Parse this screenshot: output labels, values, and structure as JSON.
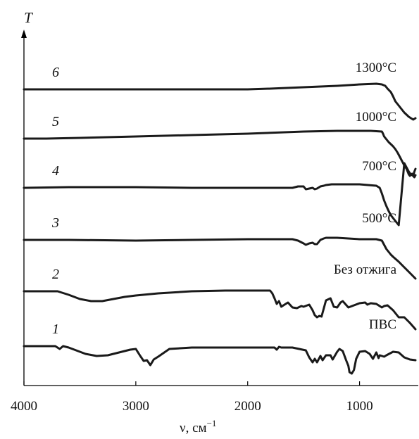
{
  "chart_data": {
    "type": "line",
    "title": "",
    "xlabel": "ν, см",
    "xlabel_superscript": "−1",
    "ylabel": "T",
    "xlim": [
      4000,
      500
    ],
    "x_reversed": true,
    "xticks": [
      4000,
      3000,
      2000,
      1000
    ],
    "y_ticks_shown": false,
    "grid": false,
    "legend": "none",
    "series": [
      {
        "number": "1",
        "label": "ПВС",
        "x": [
          4000,
          3800,
          3720,
          3680,
          3650,
          3600,
          3550,
          3450,
          3350,
          3250,
          3150,
          3050,
          3000,
          2960,
          2930,
          2900,
          2870,
          2840,
          2800,
          2700,
          2500,
          2200,
          1900,
          1760,
          1740,
          1720,
          1700,
          1600,
          1480,
          1450,
          1420,
          1400,
          1380,
          1350,
          1330,
          1300,
          1260,
          1240,
          1200,
          1180,
          1150,
          1120,
          1100,
          1090,
          1070,
          1050,
          1030,
          1000,
          950,
          910,
          880,
          850,
          830,
          820,
          780,
          760,
          700,
          650,
          600,
          550,
          500
        ],
        "y": [
          492,
          492,
          492,
          496,
          492,
          494,
          497,
          503,
          506,
          505,
          501,
          497,
          496,
          506,
          513,
          512,
          519,
          511,
          507,
          496,
          494,
          494,
          494,
          494,
          497,
          493,
          494,
          494,
          498,
          508,
          515,
          510,
          515,
          506,
          512,
          505,
          505,
          511,
          500,
          496,
          499,
          512,
          520,
          529,
          531,
          526,
          510,
          500,
          499,
          503,
          510,
          501,
          509,
          505,
          507,
          505,
          500,
          501,
          508,
          511,
          512
        ]
      },
      {
        "number": "2",
        "label": "Без отжига",
        "x": [
          4000,
          3700,
          3600,
          3500,
          3400,
          3300,
          3200,
          3100,
          3000,
          2800,
          2500,
          2200,
          1900,
          1800,
          1780,
          1760,
          1740,
          1720,
          1700,
          1680,
          1640,
          1600,
          1560,
          1520,
          1500,
          1450,
          1420,
          1400,
          1380,
          1360,
          1340,
          1300,
          1260,
          1230,
          1200,
          1170,
          1150,
          1100,
          1050,
          1000,
          950,
          930,
          900,
          850,
          800,
          780,
          750,
          700,
          650,
          600,
          550,
          500
        ],
        "y": [
          414,
          414,
          419,
          425,
          428,
          428,
          425,
          422,
          420,
          417,
          414,
          413,
          413,
          413,
          417,
          424,
          432,
          428,
          436,
          434,
          430,
          437,
          438,
          435,
          436,
          433,
          441,
          448,
          451,
          449,
          450,
          427,
          424,
          436,
          437,
          430,
          428,
          437,
          434,
          431,
          430,
          433,
          431,
          432,
          437,
          435,
          434,
          441,
          451,
          451,
          459,
          468
        ]
      },
      {
        "number": "3",
        "label": "500°C",
        "x": [
          4000,
          3600,
          3000,
          2500,
          2000,
          1700,
          1600,
          1550,
          1500,
          1480,
          1450,
          1420,
          1400,
          1380,
          1350,
          1320,
          1300,
          1250,
          1200,
          1000,
          850,
          800,
          780,
          760,
          740,
          720,
          700,
          650,
          600,
          550,
          500
        ],
        "y": [
          341,
          341,
          342,
          341,
          340,
          340,
          340,
          342,
          346,
          348,
          346,
          345,
          347,
          347,
          341,
          339,
          338,
          338,
          338,
          340,
          340,
          342,
          348,
          354,
          358,
          362,
          365,
          372,
          380,
          388,
          396
        ]
      },
      {
        "number": "4",
        "label": "700°C",
        "x": [
          4000,
          3600,
          3000,
          2500,
          2000,
          1700,
          1600,
          1550,
          1500,
          1480,
          1450,
          1420,
          1400,
          1380,
          1350,
          1320,
          1300,
          1250,
          1200,
          1000,
          850,
          820,
          800,
          780,
          760,
          740,
          720,
          700,
          650,
          600,
          580,
          560,
          540,
          520,
          510,
          500
        ],
        "y": [
          267,
          266,
          266,
          267,
          267,
          267,
          267,
          265,
          265,
          269,
          268,
          267,
          269,
          268,
          265,
          264,
          263,
          262,
          262,
          262,
          264,
          267,
          275,
          285,
          293,
          300,
          306,
          310,
          320,
          232,
          238,
          244,
          248,
          250,
          244,
          240
        ]
      },
      {
        "number": "5",
        "label": "1000°C",
        "x": [
          4000,
          3800,
          3500,
          3000,
          2500,
          2000,
          1500,
          1200,
          900,
          800,
          790,
          780,
          760,
          740,
          720,
          700,
          680,
          660,
          640,
          620,
          600,
          580,
          570,
          560,
          550,
          540,
          530,
          520,
          510,
          500
        ],
        "y": [
          197,
          197,
          196,
          194,
          192,
          190,
          187,
          186,
          186,
          187,
          190,
          194,
          198,
          202,
          205,
          208,
          212,
          217,
          223,
          229,
          235,
          240,
          244,
          248,
          250,
          248,
          247,
          250,
          252,
          249
        ]
      },
      {
        "number": "6",
        "label": "1300°C",
        "x": [
          4000,
          3800,
          3500,
          3000,
          2500,
          2000,
          1800,
          1500,
          1200,
          1000,
          850,
          800,
          770,
          750,
          720,
          700,
          680,
          650,
          620,
          600,
          580,
          560,
          540,
          520,
          500
        ],
        "y": [
          127,
          127,
          127,
          127,
          127,
          127,
          126,
          124,
          122,
          120,
          119,
          120,
          122,
          126,
          131,
          137,
          144,
          150,
          156,
          160,
          163,
          166,
          168,
          170,
          168
        ]
      }
    ]
  }
}
